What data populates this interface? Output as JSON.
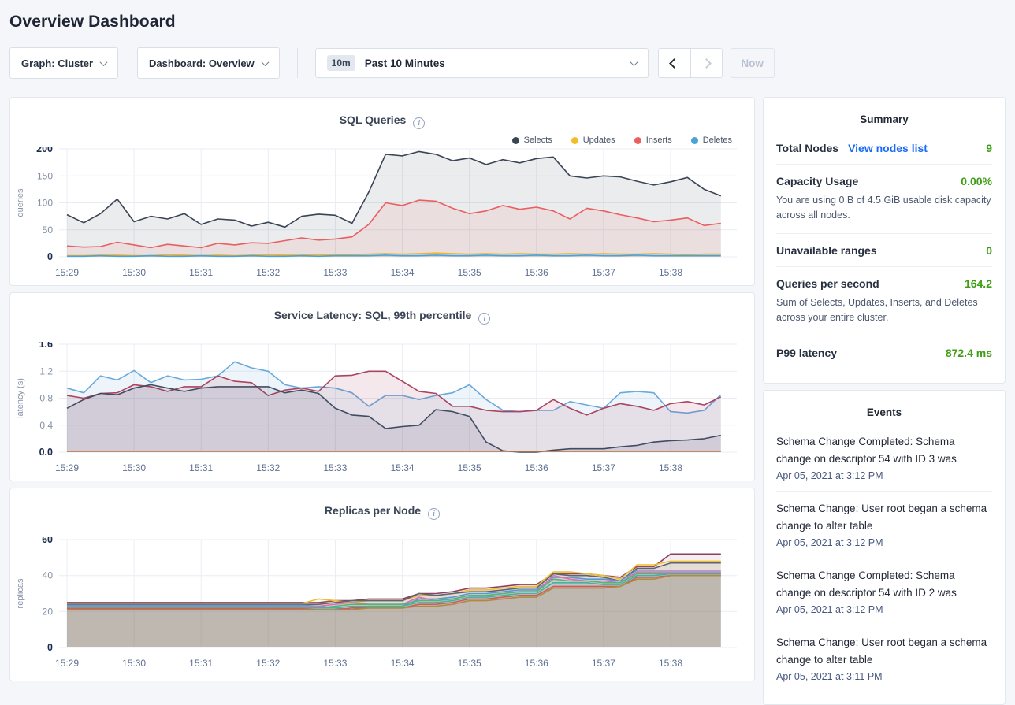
{
  "page": {
    "title": "Overview Dashboard"
  },
  "icons": {
    "info_glyph": "i"
  },
  "toolbar": {
    "graph_dropdown": "Graph: Cluster",
    "dashboard_dropdown": "Dashboard: Overview",
    "time_badge": "10m",
    "time_label": "Past 10 Minutes",
    "now_label": "Now"
  },
  "summary": {
    "title": "Summary",
    "rows": [
      {
        "label": "Total Nodes",
        "link": "View nodes list",
        "value": "9"
      },
      {
        "label": "Capacity Usage",
        "value": "0.00%",
        "desc": "You are using 0 B of 4.5 GiB usable disk capacity across all nodes."
      },
      {
        "label": "Unavailable ranges",
        "value": "0"
      },
      {
        "label": "Queries per second",
        "value": "164.2",
        "desc": "Sum of Selects, Updates, Inserts, and Deletes across your entire cluster."
      },
      {
        "label": "P99 latency",
        "value": "872.4 ms"
      }
    ]
  },
  "events": {
    "title": "Events",
    "items": [
      {
        "text": "Schema Change Completed: Schema change on descriptor 54 with ID 3 was",
        "time": "Apr 05, 2021 at 3:12 PM"
      },
      {
        "text": "Schema Change: User root began a schema change to alter table",
        "time": "Apr 05, 2021 at 3:12 PM"
      },
      {
        "text": "Schema Change Completed: Schema change on descriptor 54 with ID 2 was",
        "time": "Apr 05, 2021 at 3:12 PM"
      },
      {
        "text": "Schema Change: User root began a schema change to alter table",
        "time": "Apr 05, 2021 at 3:11 PM"
      }
    ]
  },
  "chart_data": [
    {
      "type": "area",
      "title": "SQL Queries",
      "ylabel": "queries",
      "ylim": [
        0,
        200
      ],
      "yticks": [
        0,
        50,
        100,
        150,
        200
      ],
      "ytick_labels": [
        "0",
        "50",
        "100",
        "150",
        "200"
      ],
      "x_tick_labels": [
        "15:29",
        "15:30",
        "15:31",
        "15:32",
        "15:33",
        "15:34",
        "15:35",
        "15:36",
        "15:37",
        "15:38"
      ],
      "x_step": 0.25,
      "legend": true,
      "legend_position": "top-right",
      "grid": true,
      "fill_opacity": 0.1,
      "series": [
        {
          "name": "Selects",
          "color": "#394455",
          "values": [
            78,
            63,
            80,
            107,
            65,
            75,
            70,
            80,
            60,
            70,
            68,
            57,
            64,
            55,
            75,
            79,
            77,
            62,
            120,
            190,
            187,
            195,
            190,
            178,
            183,
            171,
            180,
            174,
            182,
            185,
            150,
            146,
            150,
            148,
            140,
            133,
            139,
            147,
            125,
            113
          ]
        },
        {
          "name": "Updates",
          "color": "#f2bd2b",
          "values": [
            2,
            2,
            3,
            3,
            2,
            2,
            4,
            3,
            2,
            3,
            2,
            3,
            4,
            3,
            3,
            4,
            3,
            4,
            5,
            6,
            5,
            6,
            7,
            6,
            5,
            6,
            5,
            6,
            5,
            5,
            6,
            5,
            6,
            5,
            5,
            6,
            5,
            4,
            5,
            5
          ]
        },
        {
          "name": "Inserts",
          "color": "#ea5e60",
          "values": [
            20,
            18,
            19,
            27,
            22,
            17,
            23,
            20,
            17,
            25,
            22,
            26,
            25,
            30,
            35,
            31,
            33,
            37,
            60,
            100,
            95,
            105,
            103,
            90,
            80,
            85,
            95,
            88,
            92,
            85,
            70,
            90,
            85,
            78,
            72,
            65,
            68,
            72,
            58,
            62
          ]
        },
        {
          "name": "Deletes",
          "color": "#4aa3d8",
          "values": [
            1,
            1,
            2,
            1,
            1,
            2,
            1,
            1,
            2,
            1,
            1,
            2,
            1,
            1,
            2,
            1,
            2,
            2,
            2,
            3,
            2,
            2,
            3,
            2,
            2,
            3,
            2,
            2,
            3,
            2,
            2,
            3,
            2,
            2,
            3,
            2,
            2,
            2,
            2,
            2
          ]
        }
      ]
    },
    {
      "type": "area",
      "title": "Service Latency: SQL, 99th percentile",
      "ylabel": "latency (s)",
      "ylim": [
        0,
        1.6
      ],
      "yticks": [
        0,
        0.4,
        0.8,
        1.2,
        1.6
      ],
      "ytick_labels": [
        "0.0",
        "0.4",
        "0.8",
        "1.2",
        "1.6"
      ],
      "x_tick_labels": [
        "15:29",
        "15:30",
        "15:31",
        "15:32",
        "15:33",
        "15:34",
        "15:35",
        "15:36",
        "15:37",
        "15:38"
      ],
      "x_step": 0.25,
      "legend": false,
      "grid": true,
      "fill_opacity": 0.12,
      "series": [
        {
          "color": "#68a9dd",
          "values": [
            0.95,
            0.88,
            1.13,
            1.07,
            1.21,
            1.03,
            1.13,
            1.07,
            1.08,
            1.13,
            1.34,
            1.25,
            1.2,
            1.0,
            0.95,
            0.97,
            0.95,
            0.88,
            0.68,
            0.84,
            0.84,
            0.78,
            0.84,
            0.88,
            1.0,
            0.78,
            0.62,
            0.6,
            0.62,
            0.62,
            0.75,
            0.7,
            0.65,
            0.88,
            0.9,
            0.88,
            0.6,
            0.58,
            0.62,
            0.85
          ]
        },
        {
          "color": "#aa4460",
          "values": [
            0.84,
            0.8,
            0.87,
            0.88,
            1.0,
            0.97,
            0.9,
            0.97,
            0.97,
            1.13,
            1.05,
            1.03,
            0.84,
            0.92,
            0.95,
            0.9,
            1.13,
            1.14,
            1.2,
            1.2,
            1.05,
            0.9,
            0.87,
            0.68,
            0.68,
            0.62,
            0.6,
            0.6,
            0.62,
            0.78,
            0.65,
            0.55,
            0.65,
            0.72,
            0.68,
            0.62,
            0.72,
            0.75,
            0.7,
            0.82
          ]
        },
        {
          "color": "#424c61",
          "values": [
            0.65,
            0.78,
            0.87,
            0.85,
            0.95,
            1.0,
            0.95,
            0.9,
            0.95,
            0.97,
            0.97,
            0.97,
            0.97,
            0.88,
            0.92,
            0.87,
            0.65,
            0.55,
            0.53,
            0.35,
            0.38,
            0.4,
            0.63,
            0.6,
            0.53,
            0.15,
            0.02,
            0.0,
            0.0,
            0.03,
            0.05,
            0.05,
            0.05,
            0.08,
            0.1,
            0.15,
            0.17,
            0.18,
            0.2,
            0.25
          ]
        },
        {
          "color": "#c07a46",
          "values": [
            0.012,
            0.012,
            0.012,
            0.012,
            0.012,
            0.012,
            0.012,
            0.012,
            0.012,
            0.012,
            0.012,
            0.012,
            0.012,
            0.012,
            0.012,
            0.012,
            0.012,
            0.012,
            0.012,
            0.012,
            0.012,
            0.012,
            0.012,
            0.012,
            0.012,
            0.012,
            0.012,
            0.012,
            0.012,
            0.012,
            0.012,
            0.012,
            0.012,
            0.012,
            0.012,
            0.012,
            0.012,
            0.012,
            0.012,
            0.012
          ]
        }
      ]
    },
    {
      "type": "area",
      "title": "Replicas per Node",
      "ylabel": "replicas",
      "ylim": [
        0,
        60
      ],
      "yticks": [
        0,
        20,
        40,
        60
      ],
      "ytick_labels": [
        "0",
        "20",
        "40",
        "60"
      ],
      "x_tick_labels": [
        "15:29",
        "15:30",
        "15:31",
        "15:32",
        "15:33",
        "15:34",
        "15:35",
        "15:36",
        "15:37",
        "15:38"
      ],
      "x_step": 0.25,
      "legend": false,
      "grid": true,
      "fill_opacity": 0.09,
      "series": [
        {
          "color": "#8f3e63",
          "values": [
            25,
            25,
            25,
            25,
            25,
            25,
            25,
            25,
            25,
            25,
            25,
            25,
            25,
            25,
            25,
            25,
            26,
            26,
            27,
            27,
            27,
            30,
            30,
            31,
            33,
            33,
            34,
            35,
            35,
            41,
            41,
            41,
            40,
            39,
            45,
            45,
            52,
            52,
            52,
            52
          ]
        },
        {
          "color": "#eebf33",
          "values": [
            24.5,
            24.5,
            24.5,
            24.5,
            24.5,
            24.5,
            24.5,
            24.5,
            24.5,
            24.5,
            24.5,
            24.5,
            24.5,
            24.5,
            24.5,
            27,
            26,
            25,
            26,
            26,
            26,
            29,
            29,
            30,
            32,
            32,
            33,
            34,
            34,
            42,
            42,
            41,
            40,
            38,
            46,
            46,
            48,
            48,
            48,
            48
          ]
        },
        {
          "color": "#5b6573",
          "values": [
            24,
            24,
            24,
            24,
            24,
            24,
            24,
            24,
            24,
            24,
            24,
            24,
            24,
            24,
            24,
            24,
            25,
            26,
            26,
            26,
            26,
            30,
            29,
            30,
            31,
            31,
            32,
            33,
            33,
            41,
            40,
            40,
            39,
            37,
            44,
            44,
            47,
            47,
            47,
            47
          ]
        },
        {
          "color": "#5897d0",
          "values": [
            23.5,
            23.5,
            23.5,
            23.5,
            23.5,
            23.5,
            23.5,
            23.5,
            23.5,
            23.5,
            23.5,
            23.5,
            23.5,
            23.5,
            23.5,
            23,
            22,
            21,
            23,
            23,
            23,
            27,
            27,
            28,
            30,
            30,
            31,
            32,
            32,
            39,
            39,
            38,
            38,
            37,
            43,
            43,
            43,
            43,
            43,
            43
          ]
        },
        {
          "color": "#dd6fae",
          "values": [
            23,
            23,
            23,
            23,
            23,
            23,
            23,
            23,
            23,
            23,
            23,
            23,
            23,
            23,
            23,
            23,
            24,
            25,
            24,
            24,
            24,
            28,
            26,
            27,
            29,
            29,
            30,
            31,
            31,
            40,
            38,
            37,
            37,
            36,
            42,
            42,
            42,
            42,
            42,
            42
          ]
        },
        {
          "color": "#54b578",
          "values": [
            22.5,
            22.5,
            22.5,
            22.5,
            22.5,
            22.5,
            22.5,
            22.5,
            22.5,
            22.5,
            22.5,
            22.5,
            22.5,
            22.5,
            22.5,
            22,
            23,
            24,
            24,
            24,
            24,
            26,
            26,
            27,
            29,
            29,
            30,
            31,
            31,
            38,
            37,
            37,
            36,
            36,
            41,
            41,
            41,
            41,
            41,
            41
          ]
        },
        {
          "color": "#47b0a3",
          "values": [
            22,
            22,
            22,
            22,
            22,
            22,
            22,
            22,
            22,
            22,
            22,
            22,
            22,
            22,
            22,
            22,
            22,
            23,
            23,
            23,
            23,
            25,
            25,
            26,
            28,
            28,
            29,
            30,
            30,
            36,
            36,
            36,
            35,
            35,
            40,
            40,
            41,
            41,
            41,
            41
          ]
        },
        {
          "color": "#d05b5b",
          "values": [
            21.5,
            21.5,
            21.5,
            21.5,
            21.5,
            21.5,
            21.5,
            21.5,
            21.5,
            21.5,
            21.5,
            21.5,
            21.5,
            21.5,
            21.5,
            21,
            21,
            22,
            22,
            22,
            22,
            24,
            24,
            25,
            27,
            27,
            28,
            29,
            29,
            34,
            34,
            34,
            34,
            34,
            39,
            39,
            40,
            40,
            40,
            40
          ]
        },
        {
          "color": "#b08a3e",
          "values": [
            21,
            21,
            21,
            21,
            21,
            21,
            21,
            21,
            21,
            21,
            21,
            21,
            21,
            21,
            21,
            21,
            21,
            21,
            22,
            22,
            22,
            23,
            23,
            24,
            26,
            26,
            27,
            28,
            28,
            33,
            33,
            33,
            33,
            34,
            38,
            38,
            40,
            40,
            40,
            40
          ]
        }
      ]
    }
  ]
}
